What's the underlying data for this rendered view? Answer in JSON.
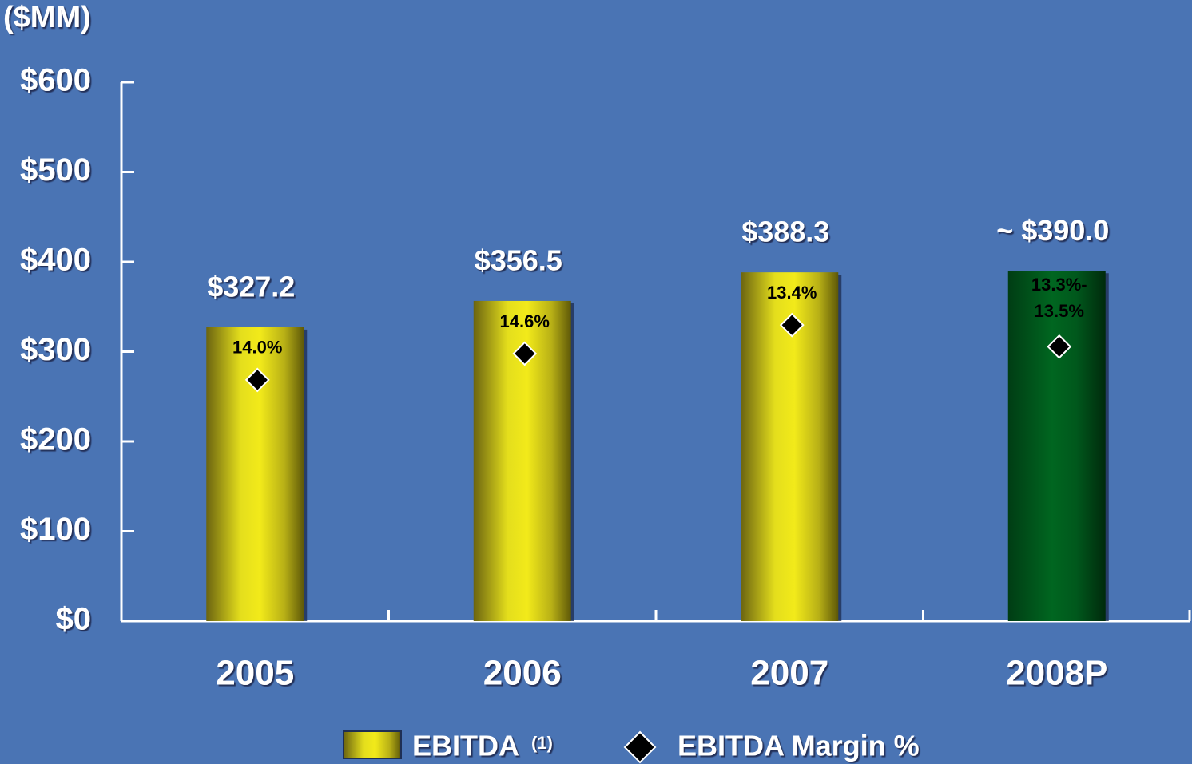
{
  "chart_data": {
    "type": "bar",
    "y_label": "($MM)",
    "categories": [
      "2005",
      "2006",
      "2007",
      "2008P"
    ],
    "series": [
      {
        "name": "EBITDA",
        "name_note": "(1)",
        "colors": [
          "yellow",
          "yellow",
          "yellow",
          "green"
        ],
        "values": [
          327.2,
          356.5,
          388.3,
          390.0
        ],
        "value_labels": [
          "$327.2",
          "$356.5",
          "$388.3",
          "~ $390.0"
        ]
      },
      {
        "name": "EBITDA Margin %",
        "type": "marker",
        "color": "#000000",
        "values": [
          14.0,
          14.6,
          13.4,
          [
            13.3,
            13.5
          ]
        ],
        "value_labels": [
          [
            "14.0%"
          ],
          [
            "14.6%"
          ],
          [
            "13.4%"
          ],
          [
            "13.3%-",
            "13.5%"
          ]
        ]
      }
    ],
    "ylim": [
      0,
      600
    ],
    "yticks": [
      {
        "value": 0,
        "label": "$0"
      },
      {
        "value": 100,
        "label": "$100"
      },
      {
        "value": 200,
        "label": "$200"
      },
      {
        "value": 300,
        "label": "$300"
      },
      {
        "value": 400,
        "label": "$400"
      },
      {
        "value": 500,
        "label": "$500"
      },
      {
        "value": 600,
        "label": "$600"
      }
    ],
    "legend": "bottom"
  }
}
